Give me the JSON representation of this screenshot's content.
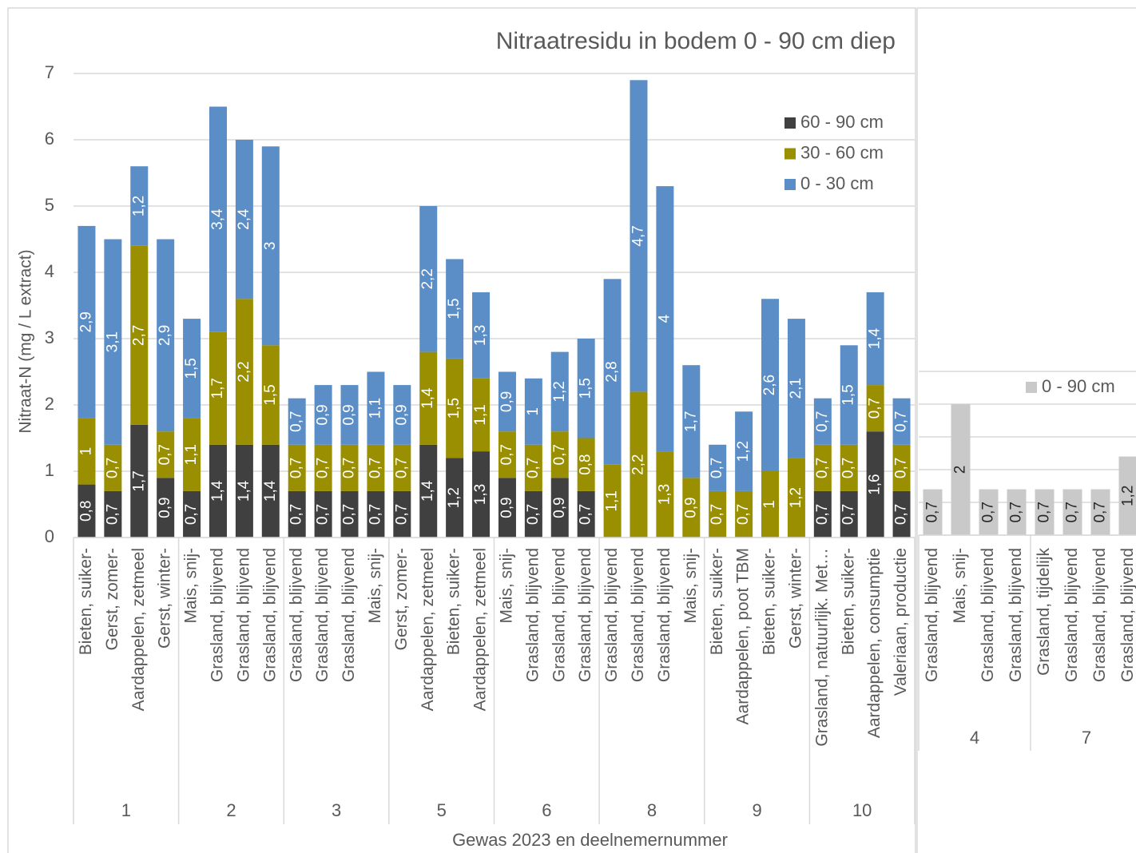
{
  "chart_data": [
    {
      "type": "bar",
      "stacked": true,
      "title": "Nitraatresidu in bodem 0 - 90 cm diep",
      "ylabel": "Nitraat-N (mg / L extract)",
      "xlabel": "Gewas 2023 en deelnemernummer",
      "groups": [
        {
          "label": "1",
          "categories": [
            "Bieten, suiker-",
            "Gerst, zomer-",
            "Aardappelen, zetmeel",
            "Gerst, winter-"
          ]
        },
        {
          "label": "2",
          "categories": [
            "Mais, snij-",
            "Grasland, blijvend",
            "Grasland, blijvend",
            "Grasland, blijvend"
          ]
        },
        {
          "label": "3",
          "categories": [
            "Grasland, blijvend",
            "Grasland, blijvend",
            "Grasland, blijvend",
            "Mais, snij-"
          ]
        },
        {
          "label": "5",
          "categories": [
            "Gerst, zomer-",
            "Aardappelen, zetmeel",
            "Bieten, suiker-",
            "Aardappelen, zetmeel"
          ]
        },
        {
          "label": "6",
          "categories": [
            "Mais, snij-",
            "Grasland, blijvend",
            "Grasland, blijvend",
            "Grasland, blijvend"
          ]
        },
        {
          "label": "8",
          "categories": [
            "Grasland, blijvend",
            "Grasland, blijvend",
            "Grasland, blijvend",
            "Mais, snij-"
          ]
        },
        {
          "label": "9",
          "categories": [
            "Bieten, suiker-",
            "Aardappelen, poot TBM",
            "Bieten, suiker-",
            "Gerst, winter-"
          ]
        },
        {
          "label": "10",
          "categories": [
            "Grasland, natuurlijk. Met…",
            "Bieten, suiker-",
            "Aardappelen, consumptie",
            "Valeriaan, productie"
          ]
        }
      ],
      "series": [
        {
          "name": "60 - 90 cm",
          "color": "#404040",
          "label_color": "#ffffff",
          "values": [
            0.8,
            0.7,
            1.7,
            0.9,
            0.7,
            1.4,
            1.4,
            1.4,
            0.7,
            0.7,
            0.7,
            0.7,
            0.7,
            1.4,
            1.2,
            1.3,
            0.9,
            0.7,
            0.9,
            0.7,
            null,
            null,
            null,
            null,
            null,
            null,
            null,
            null,
            0.7,
            0.7,
            1.6,
            0.7
          ],
          "value_labels": [
            "0,8",
            "0,7",
            "1,7",
            "0,9",
            "0,7",
            "1,4",
            "1,4",
            "1,4",
            "0,7",
            "0,7",
            "0,7",
            "0,7",
            "0,7",
            "1,4",
            "1,2",
            "1,3",
            "0,9",
            "0,7",
            "0,9",
            "0,7",
            null,
            null,
            null,
            null,
            null,
            null,
            null,
            null,
            "0,7",
            "0,7",
            "1,6",
            "0,7"
          ]
        },
        {
          "name": "30 - 60 cm",
          "color": "#998f00",
          "label_color": "#ffffff",
          "values": [
            1,
            0.7,
            2.7,
            0.7,
            1.1,
            1.7,
            2.2,
            1.5,
            0.7,
            0.7,
            0.7,
            0.7,
            0.7,
            1.4,
            1.5,
            1.1,
            0.7,
            0.7,
            0.7,
            0.8,
            1.1,
            2.2,
            1.3,
            0.9,
            0.7,
            0.7,
            1,
            1.2,
            0.7,
            0.7,
            0.7,
            0.7
          ],
          "value_labels": [
            "1",
            "0,7",
            "2,7",
            "0,7",
            "1,1",
            "1,7",
            "2,2",
            "1,5",
            "0,7",
            "0,7",
            "0,7",
            "0,7",
            "0,7",
            "1,4",
            "1,5",
            "1,1",
            "0,7",
            "0,7",
            "0,7",
            "0,8",
            "1,1",
            "2,2",
            "1,3",
            "0,9",
            "0,7",
            "0,7",
            "1",
            "1,2",
            "0,7",
            "0,7",
            "0,7",
            "0,7"
          ]
        },
        {
          "name": "0 - 30 cm",
          "color": "#5b8ec6",
          "label_color": "#ffffff",
          "values": [
            2.9,
            3.1,
            1.2,
            2.9,
            1.5,
            3.4,
            2.4,
            3,
            0.7,
            0.9,
            0.9,
            1.1,
            0.9,
            2.2,
            1.5,
            1.3,
            0.9,
            1,
            1.2,
            1.5,
            2.8,
            4.7,
            4,
            1.7,
            0.7,
            1.2,
            2.6,
            2.1,
            0.7,
            1.5,
            1.4,
            0.7
          ],
          "value_labels": [
            "2,9",
            "3,1",
            "1,2",
            "2,9",
            "1,5",
            "3,4",
            "2,4",
            "3",
            "0,7",
            "0,9",
            "0,9",
            "1,1",
            "0,9",
            "2,2",
            "1,5",
            "1,3",
            "0,9",
            "1",
            "1,2",
            "1,5",
            "2,8",
            "4,7",
            "4",
            "1,7",
            "0,7",
            "1,2",
            "2,6",
            "2,1",
            "0,7",
            "1,5",
            "1,4",
            "0,7"
          ]
        }
      ],
      "ylim": [
        0,
        7
      ],
      "yticks": [
        0,
        1,
        2,
        3,
        4,
        5,
        6,
        7
      ],
      "grid": true,
      "legend": "top-right"
    },
    {
      "type": "bar",
      "stacked": true,
      "groups": [
        {
          "label": "4",
          "categories": [
            "Grasland, blijvend",
            "Mais, snij-",
            "Grasland, blijvend",
            "Grasland, blijvend"
          ]
        },
        {
          "label": "7",
          "categories": [
            "Grasland, tijdelijk",
            "Grasland, blijvend",
            "Grasland, blijvend",
            "Grasland, blijvend"
          ]
        }
      ],
      "series": [
        {
          "name": "0 - 90 cm",
          "color": "#c9c9c9",
          "label_color": "#262626",
          "values": [
            0.7,
            2,
            0.7,
            0.7,
            0.7,
            0.7,
            0.7,
            1.2
          ],
          "value_labels": [
            "0,7",
            "2",
            "0,7",
            "0,7",
            "0,7",
            "0,7",
            "0,7",
            "1,2"
          ]
        }
      ],
      "ylim": [
        0,
        2.5
      ],
      "yticks": [
        0,
        0.5,
        1,
        1.5,
        2,
        2.5
      ],
      "grid": true,
      "legend": "top-right"
    }
  ]
}
